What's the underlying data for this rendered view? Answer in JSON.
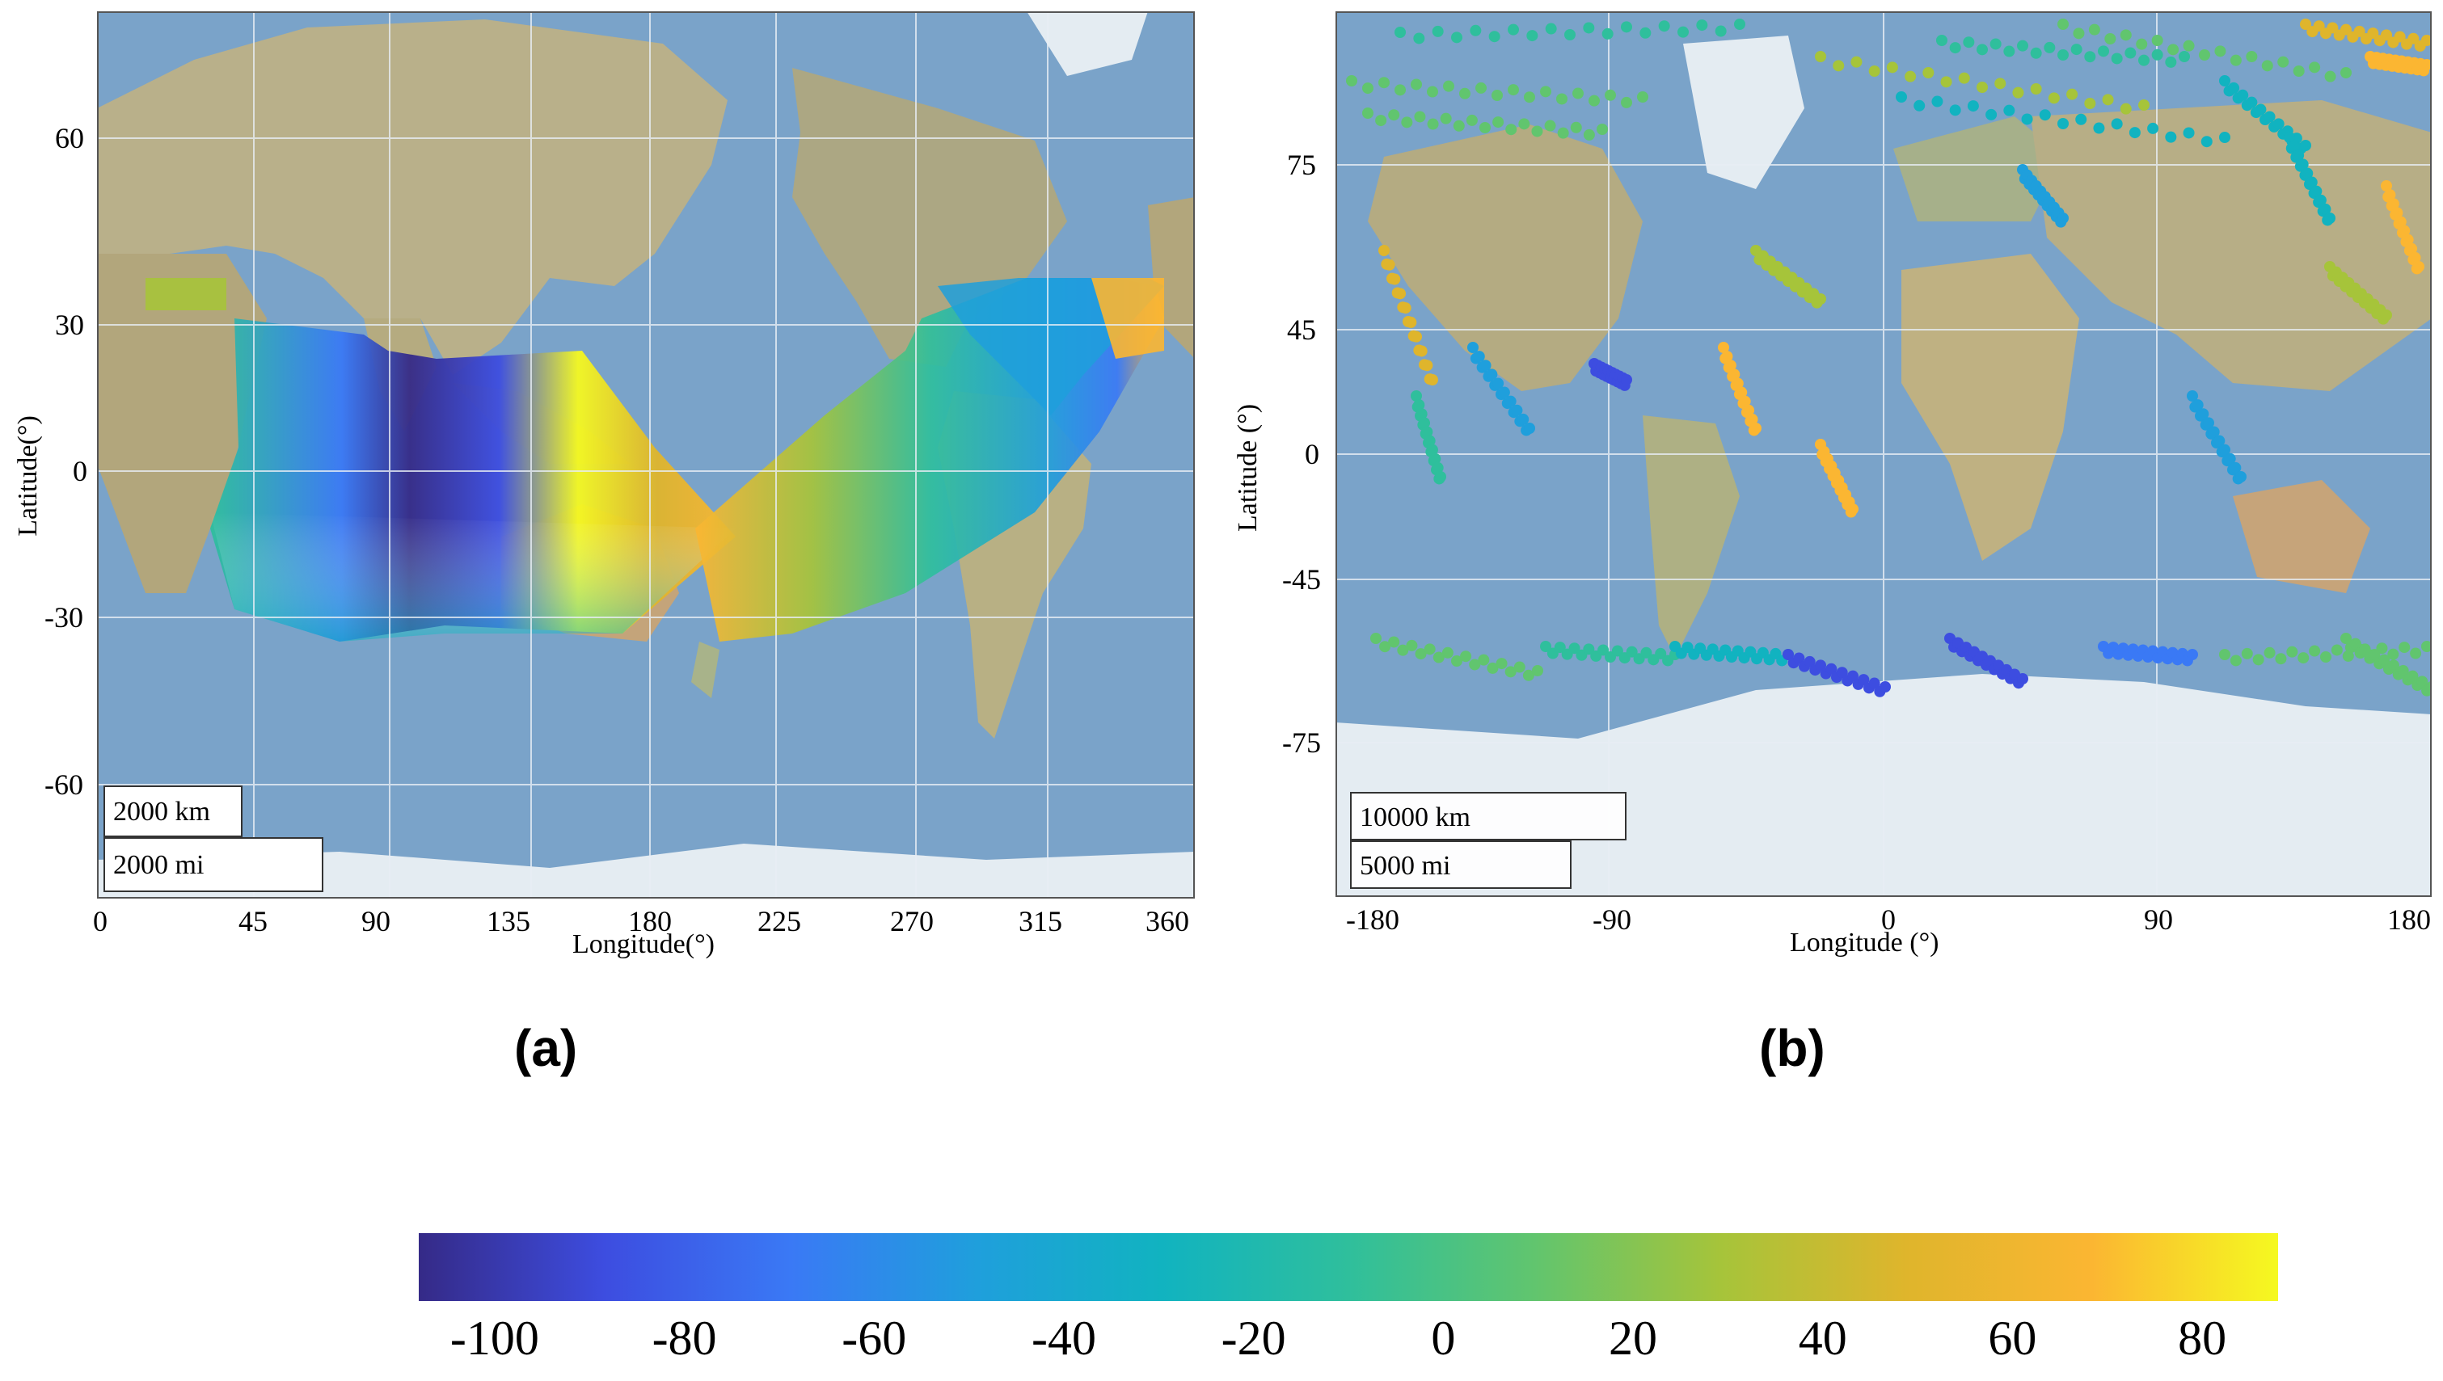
{
  "colormap": [
    "#352a87",
    "#3d4de0",
    "#3a79f5",
    "#1f9fdc",
    "#11b3c0",
    "#2fbf9c",
    "#61c56e",
    "#a6c43a",
    "#dfb52c",
    "#fbb632",
    "#f5f920"
  ],
  "map_colors": {
    "ocean": "#7aa3c9",
    "land": "#b9b08a",
    "ice": "#e4ecf2",
    "grid": "#e8eef5"
  },
  "panels": [
    {
      "id": "a",
      "label": "(a)",
      "xlabel": "Longitude(°)",
      "ylabel": "Latitude(°)",
      "x_ticks": [
        "0",
        "45",
        "90",
        "135",
        "180",
        "225",
        "270",
        "315",
        "360"
      ],
      "y_ticks": [
        "60",
        "30",
        "0",
        "-30",
        "-60"
      ],
      "scale_km": "2000 km",
      "scale_mi": "2000 mi"
    },
    {
      "id": "b",
      "label": "(b)",
      "xlabel": "Longitude (°)",
      "ylabel": "Latitude (°)",
      "x_ticks": [
        "-180",
        "-90",
        "0",
        "90",
        "180"
      ],
      "y_ticks": [
        "75",
        "45",
        "0",
        "-45",
        "-75"
      ],
      "scale_km": "10000 km",
      "scale_mi": "5000 mi"
    }
  ],
  "colorbar": {
    "ticks": [
      "-100",
      "-80",
      "-60",
      "-40",
      "-20",
      "0",
      "20",
      "40",
      "60",
      "80"
    ],
    "range": [
      -108,
      88
    ]
  }
}
